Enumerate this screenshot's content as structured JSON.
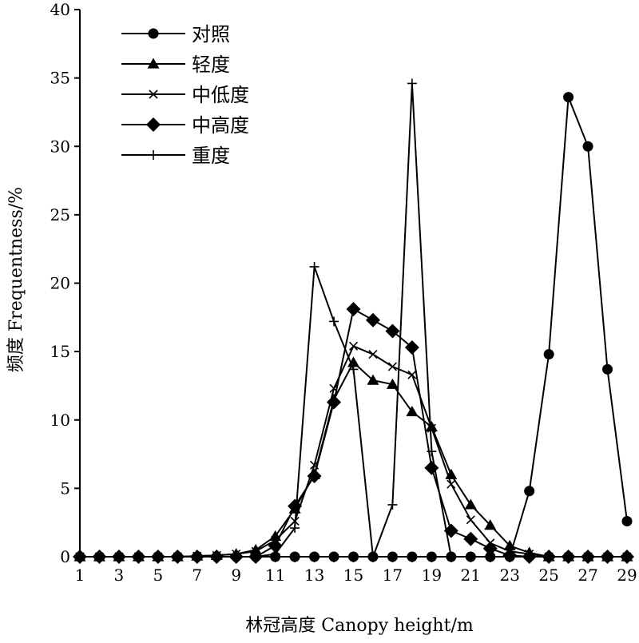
{
  "chart_data": {
    "type": "line",
    "xlabel": "林冠高度 Canopy height/m",
    "ylabel": "频度 Frequentness/%",
    "xlim": [
      1,
      29
    ],
    "ylim": [
      0,
      40
    ],
    "x_ticks": [
      1,
      3,
      5,
      7,
      9,
      11,
      13,
      15,
      17,
      19,
      21,
      23,
      25,
      27,
      29
    ],
    "y_ticks": [
      0,
      5,
      10,
      15,
      20,
      25,
      30,
      35,
      40
    ],
    "grid": false,
    "legend_position": "top-left",
    "x": [
      1,
      2,
      3,
      4,
      5,
      6,
      7,
      8,
      9,
      10,
      11,
      12,
      13,
      14,
      15,
      16,
      17,
      18,
      19,
      20,
      21,
      22,
      23,
      24,
      25,
      26,
      27,
      28,
      29
    ],
    "series": [
      {
        "name": "对照",
        "marker": "circle",
        "values": [
          0,
          0,
          0,
          0,
          0,
          0,
          0,
          0,
          0,
          0,
          0,
          0,
          0,
          0,
          0,
          0,
          0,
          0,
          0,
          0,
          0,
          0,
          0,
          4.8,
          14.8,
          33.6,
          30.0,
          13.7,
          2.6
        ]
      },
      {
        "name": "轻度",
        "marker": "triangle",
        "values": [
          0,
          0,
          0,
          0,
          0,
          0,
          0.05,
          0.1,
          0.2,
          0.5,
          1.5,
          3.5,
          6.0,
          11.5,
          14.2,
          12.9,
          12.6,
          10.6,
          9.5,
          6.0,
          3.8,
          2.3,
          0.8,
          0.3,
          0,
          0,
          0,
          0,
          0
        ]
      },
      {
        "name": "中低度",
        "marker": "x",
        "values": [
          0,
          0,
          0,
          0,
          0,
          0,
          0.05,
          0.1,
          0.2,
          0.4,
          1.2,
          2.6,
          6.7,
          12.3,
          15.4,
          14.8,
          13.9,
          13.3,
          9.4,
          5.3,
          2.7,
          1.0,
          0.4,
          0.2,
          0,
          0,
          0,
          0,
          0
        ]
      },
      {
        "name": "中高度",
        "marker": "diamond",
        "values": [
          0,
          0,
          0,
          0,
          0,
          0,
          0,
          0,
          0,
          0,
          0.8,
          3.7,
          5.9,
          11.3,
          18.1,
          17.3,
          16.5,
          15.3,
          6.5,
          1.9,
          1.3,
          0.6,
          0.1,
          0,
          0,
          0,
          0,
          0,
          0
        ]
      },
      {
        "name": "重度",
        "marker": "plus",
        "values": [
          0,
          0,
          0,
          0,
          0,
          0,
          0,
          0,
          0,
          0,
          0.2,
          2.1,
          21.2,
          17.2,
          13.7,
          0,
          3.8,
          34.6,
          7.7,
          0,
          0,
          0,
          0,
          0,
          0,
          0,
          0,
          0,
          0
        ]
      }
    ]
  }
}
